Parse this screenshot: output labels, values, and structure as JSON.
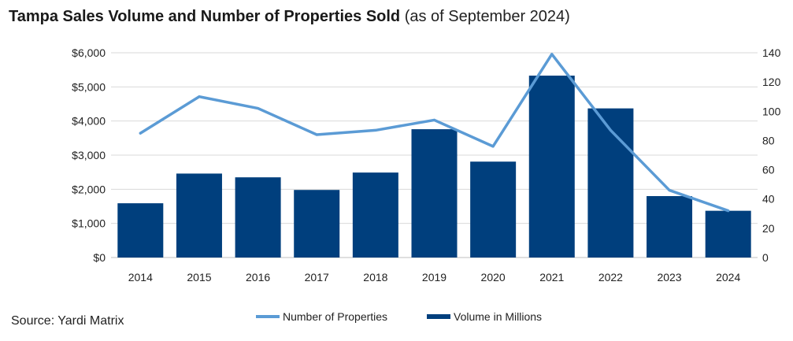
{
  "title": {
    "main": "Tampa Sales Volume and Number of Properties Sold",
    "sub": "(as of September 2024)"
  },
  "source": "Source: Yardi Matrix",
  "colors": {
    "bars": "#003f7d",
    "line": "#5b9bd5",
    "grid": "#d9d9d9"
  },
  "chart_data": {
    "type": "bar",
    "categories": [
      "2014",
      "2015",
      "2016",
      "2017",
      "2018",
      "2019",
      "2020",
      "2021",
      "2022",
      "2023",
      "2024"
    ],
    "series": [
      {
        "name": "Volume in Millions",
        "type": "bar",
        "axis": "left",
        "values": [
          1590,
          2460,
          2350,
          1980,
          2490,
          3760,
          2810,
          5330,
          4370,
          1800,
          1370
        ]
      },
      {
        "name": "Number of Properties",
        "type": "line",
        "axis": "right",
        "values": [
          85,
          110,
          102,
          84,
          87,
          94,
          76,
          139,
          87,
          46,
          32
        ]
      }
    ],
    "y_left": {
      "ylim": [
        0,
        6000
      ],
      "ticks": [
        "$0",
        "$1,000",
        "$2,000",
        "$3,000",
        "$4,000",
        "$5,000",
        "$6,000"
      ]
    },
    "y_right": {
      "ylim": [
        0,
        140
      ],
      "ticks": [
        "0",
        "20",
        "40",
        "60",
        "80",
        "100",
        "120",
        "140"
      ]
    },
    "grid": true,
    "legend": {
      "placement": "bottom",
      "entries": [
        "Number of Properties",
        "Volume in Millions"
      ]
    }
  }
}
